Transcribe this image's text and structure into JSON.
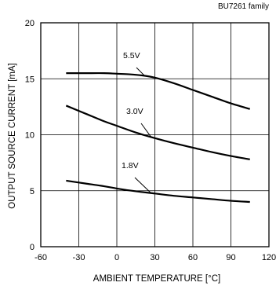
{
  "chart_data": {
    "type": "line",
    "title": "BU7261  family",
    "xlabel": "AMBIENT TEMPERATURE [°C]",
    "ylabel": "OUTPUT SOURCE CURRENT [mA]",
    "xlim": [
      -60,
      120
    ],
    "ylim": [
      0,
      20
    ],
    "xticks": [
      -60,
      -30,
      0,
      30,
      60,
      90,
      120
    ],
    "yticks": [
      0,
      5,
      10,
      15,
      20
    ],
    "grid": true,
    "series": [
      {
        "name": "5.5V",
        "x": [
          -40,
          -25,
          -10,
          0,
          10,
          20,
          30,
          45,
          60,
          75,
          90,
          105
        ],
        "y": [
          15.5,
          15.5,
          15.5,
          15.45,
          15.4,
          15.3,
          15.1,
          14.6,
          14.0,
          13.4,
          12.8,
          12.3
        ]
      },
      {
        "name": "3.0V",
        "x": [
          -40,
          -25,
          -10,
          0,
          15,
          30,
          45,
          60,
          75,
          90,
          105
        ],
        "y": [
          12.6,
          11.9,
          11.2,
          10.8,
          10.2,
          9.7,
          9.25,
          8.85,
          8.45,
          8.1,
          7.8
        ]
      },
      {
        "name": "1.8V",
        "x": [
          -40,
          -25,
          -10,
          0,
          15,
          30,
          45,
          60,
          75,
          90,
          105
        ],
        "y": [
          5.9,
          5.65,
          5.4,
          5.2,
          4.95,
          4.75,
          4.55,
          4.4,
          4.25,
          4.1,
          4.0
        ]
      }
    ]
  }
}
